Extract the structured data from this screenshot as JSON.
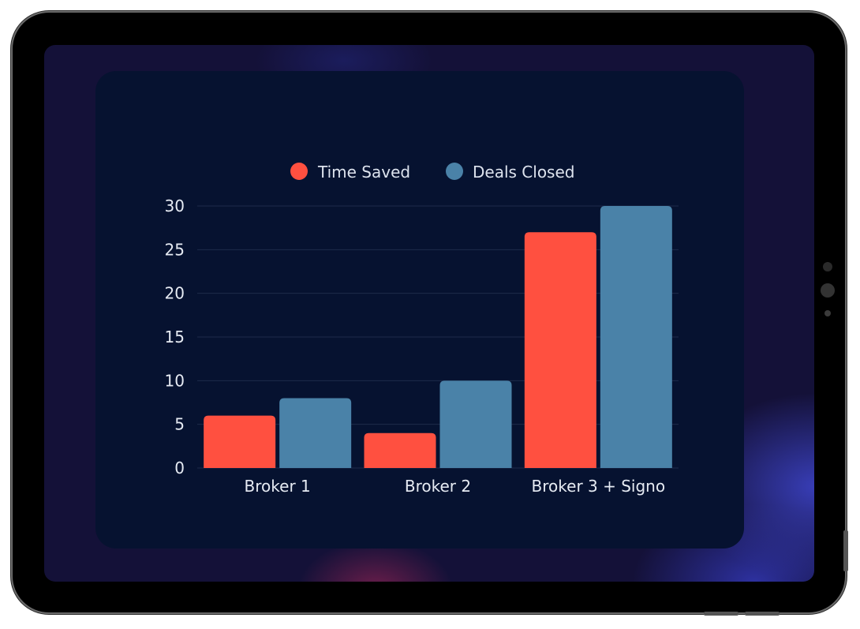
{
  "colors": {
    "time_saved": "#ff5040",
    "deals_closed": "#4a82a8",
    "grid": "#1d2b4a"
  },
  "chart_data": {
    "type": "bar",
    "categories": [
      "Broker 1",
      "Broker 2",
      "Broker 3 + Signo"
    ],
    "series": [
      {
        "name": "Time Saved",
        "values": [
          6,
          4,
          27
        ]
      },
      {
        "name": "Deals Closed",
        "values": [
          8,
          10,
          30
        ]
      }
    ],
    "ylim": [
      0,
      30
    ],
    "yticks": [
      "0",
      "5",
      "10",
      "15",
      "20",
      "25",
      "30"
    ],
    "grid": true,
    "legend": "top-center"
  }
}
